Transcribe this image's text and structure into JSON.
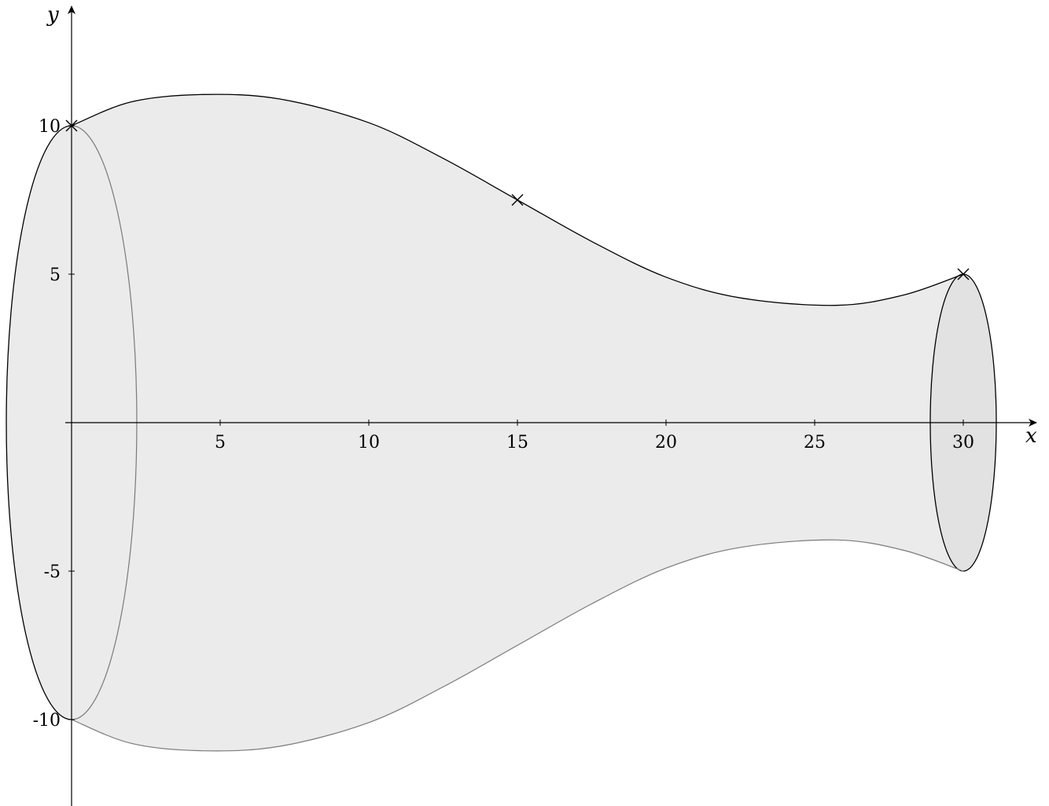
{
  "chart_data": {
    "type": "diagram",
    "xlabel": "x",
    "ylabel": "y",
    "xlim": [
      0,
      31.5
    ],
    "ylim": [
      -12.5,
      13.5
    ],
    "x_ticks": [
      5,
      10,
      15,
      20,
      25,
      30
    ],
    "x_tick_labels": [
      "5",
      "10",
      "15",
      "20",
      "25",
      "30"
    ],
    "y_ticks": [
      10,
      5,
      -5,
      -10
    ],
    "y_tick_labels": [
      "10",
      "5",
      "-5",
      "-10"
    ],
    "profile_curve": {
      "x": [
        0,
        2,
        4.4,
        7,
        10,
        12.5,
        15,
        17.5,
        20,
        22.5,
        25.7,
        28,
        30
      ],
      "y": [
        10,
        10.8,
        11.05,
        10.9,
        10.1,
        8.9,
        7.5,
        6.1,
        4.9,
        4.2,
        3.95,
        4.3,
        5
      ]
    },
    "marked_points": [
      {
        "x": 0,
        "y": 10
      },
      {
        "x": 15,
        "y": 7.5
      },
      {
        "x": 30,
        "y": 5
      }
    ],
    "end_ellipses": [
      {
        "x": 0,
        "radius": 10
      },
      {
        "x": 30,
        "radius": 5
      }
    ],
    "colors": {
      "surface_fill": "#ebebeb",
      "end_cap_fill": "#e2e2e2",
      "outline": "#000000",
      "hidden_outline": "#7a7a7a"
    }
  }
}
